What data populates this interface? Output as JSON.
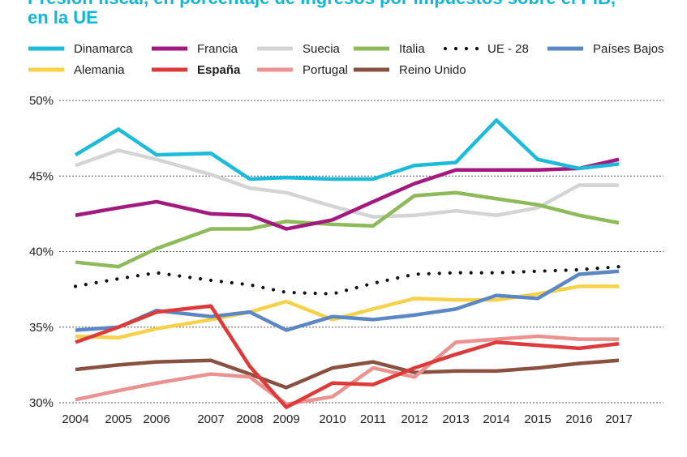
{
  "title_lines": [
    "Presión fiscal, en porcentaje de ingresos por impuestos sobre el PIB,",
    "en la UE"
  ],
  "chart_data": {
    "type": "line",
    "title": "Presión fiscal, en porcentaje de ingresos por impuestos sobre el PIB, en la UE",
    "xlabel": "",
    "ylabel": "",
    "x": [
      2004,
      2005,
      2006,
      2007,
      2008,
      2009,
      2010,
      2011,
      2012,
      2013,
      2014,
      2015,
      2016,
      2017
    ],
    "x_tick_labels": [
      "2004",
      "2005",
      "2006",
      "2007",
      "2008",
      "2009",
      "2010",
      "2011",
      "2012",
      "2013",
      "2014",
      "2015",
      "2016",
      "2017"
    ],
    "ylim": [
      30,
      50
    ],
    "y_ticks": [
      30,
      35,
      40,
      45,
      50
    ],
    "y_tick_labels": [
      "30%",
      "35%",
      "40%",
      "45%",
      "50%"
    ],
    "grid": "horizontal dotted",
    "legend_position": "top",
    "series": [
      {
        "name": "Dinamarca",
        "color": "#1bbbd9",
        "style": "solid",
        "bold": false,
        "values": [
          46.4,
          48.1,
          46.4,
          46.5,
          44.8,
          44.9,
          44.8,
          44.8,
          45.7,
          45.9,
          48.7,
          46.1,
          45.5,
          45.8
        ]
      },
      {
        "name": "Francia",
        "color": "#a3197f",
        "style": "solid",
        "bold": false,
        "values": [
          42.4,
          42.9,
          43.3,
          42.5,
          42.4,
          41.5,
          42.1,
          43.3,
          44.5,
          45.4,
          45.4,
          45.4,
          45.5,
          46.1
        ]
      },
      {
        "name": "Suecia",
        "color": "#d4d4d4",
        "style": "solid",
        "bold": false,
        "values": [
          45.7,
          46.7,
          46.1,
          45.1,
          44.2,
          43.9,
          43.0,
          42.3,
          42.4,
          42.7,
          42.4,
          42.9,
          44.4,
          44.4
        ]
      },
      {
        "name": "Italia",
        "color": "#8dbb5a",
        "style": "solid",
        "bold": false,
        "values": [
          39.3,
          39.0,
          40.2,
          41.5,
          41.5,
          42.0,
          41.8,
          41.7,
          43.7,
          43.9,
          43.5,
          43.1,
          42.4,
          41.9
        ]
      },
      {
        "name": "UE - 28",
        "color": "#111111",
        "style": "dotted",
        "bold": false,
        "values": [
          37.7,
          38.2,
          38.6,
          38.1,
          37.8,
          37.3,
          37.2,
          37.9,
          38.5,
          38.6,
          38.6,
          38.7,
          38.8,
          39.0
        ]
      },
      {
        "name": "Países Bajos",
        "color": "#5b87c4",
        "style": "solid",
        "bold": false,
        "values": [
          34.8,
          35.0,
          36.1,
          35.7,
          36.0,
          34.8,
          35.7,
          35.5,
          35.8,
          36.2,
          37.1,
          36.9,
          38.5,
          38.7
        ]
      },
      {
        "name": "Alemania",
        "color": "#f5d24a",
        "style": "solid",
        "bold": false,
        "values": [
          34.4,
          34.3,
          34.9,
          35.5,
          36.0,
          36.7,
          35.5,
          36.2,
          36.9,
          36.8,
          36.8,
          37.2,
          37.7,
          37.7
        ]
      },
      {
        "name": "España",
        "color": "#df3a3a",
        "style": "solid",
        "bold": true,
        "values": [
          34.0,
          35.0,
          36.0,
          36.4,
          32.4,
          29.7,
          31.3,
          31.2,
          32.3,
          33.2,
          34.0,
          33.8,
          33.6,
          33.9
        ]
      },
      {
        "name": "Portugal",
        "color": "#ea9290",
        "style": "solid",
        "bold": false,
        "values": [
          30.2,
          30.8,
          31.3,
          31.9,
          31.7,
          29.9,
          30.4,
          32.3,
          31.7,
          34.0,
          34.2,
          34.4,
          34.2,
          34.2
        ]
      },
      {
        "name": "Reino Unido",
        "color": "#8a5040",
        "style": "solid",
        "bold": false,
        "values": [
          32.2,
          32.5,
          32.7,
          32.8,
          31.9,
          31.0,
          32.3,
          32.7,
          32.0,
          32.1,
          32.1,
          32.3,
          32.6,
          32.8
        ]
      }
    ]
  }
}
